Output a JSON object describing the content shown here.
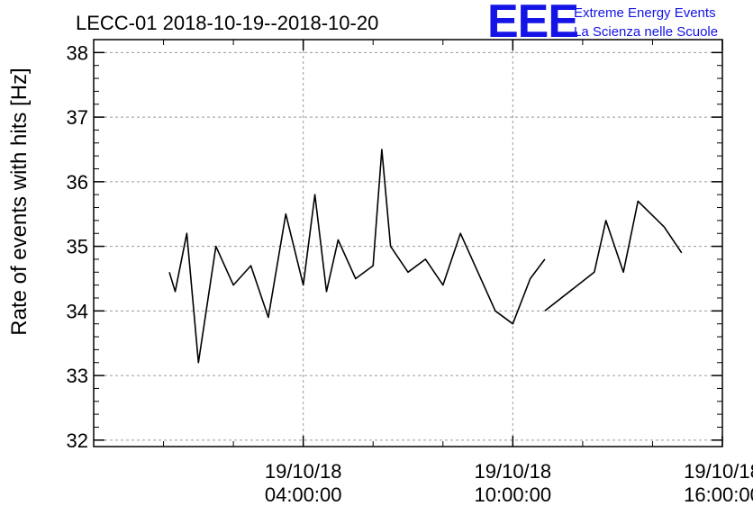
{
  "chart_data": {
    "type": "line",
    "title": "LECC-01 2018-10-19--2018-10-20",
    "ylabel": "Rate of events with hits [Hz]",
    "xlabel": "",
    "ylim": [
      31.9,
      38.2
    ],
    "yticks": [
      32,
      33,
      34,
      35,
      36,
      37,
      38
    ],
    "ytick_labels": [
      "32",
      "33",
      "34",
      "35",
      "36",
      "37",
      "38"
    ],
    "xlim": [
      "2018-10-18T22:00:00",
      "2018-10-19T16:00:00"
    ],
    "xticks": [
      "2018-10-19T04:00:00",
      "2018-10-19T10:00:00",
      "2018-10-19T16:00:00"
    ],
    "xtick_labels": [
      {
        "date": "19/10/18",
        "time": "04:00:00"
      },
      {
        "date": "19/10/18",
        "time": "10:00:00"
      },
      {
        "date": "19/10/18",
        "time": "16:00:00"
      }
    ],
    "grid": true,
    "series": [
      {
        "color": "#000000",
        "segments": [
          {
            "x": [
              "2018-10-19T00:10:00",
              "2018-10-19T00:20:00",
              "2018-10-19T00:40:00",
              "2018-10-19T01:00:00",
              "2018-10-19T01:30:00",
              "2018-10-19T02:00:00",
              "2018-10-19T02:30:00",
              "2018-10-19T03:00:00",
              "2018-10-19T03:30:00",
              "2018-10-19T04:00:00",
              "2018-10-19T04:20:00",
              "2018-10-19T04:40:00",
              "2018-10-19T05:00:00",
              "2018-10-19T05:30:00",
              "2018-10-19T06:00:00",
              "2018-10-19T06:15:00",
              "2018-10-19T06:30:00",
              "2018-10-19T07:00:00",
              "2018-10-19T07:30:00",
              "2018-10-19T08:00:00",
              "2018-10-19T08:30:00",
              "2018-10-19T09:00:00",
              "2018-10-19T09:30:00",
              "2018-10-19T10:00:00",
              "2018-10-19T10:30:00",
              "2018-10-19T10:55:00"
            ],
            "y": [
              34.6,
              34.3,
              35.2,
              33.2,
              35.0,
              34.4,
              34.7,
              33.9,
              35.5,
              34.4,
              35.8,
              34.3,
              35.1,
              34.5,
              34.7,
              36.5,
              35.0,
              34.6,
              34.8,
              34.4,
              35.2,
              34.6,
              34.0,
              33.8,
              34.5,
              34.8
            ]
          },
          {
            "x": [
              "2018-10-19T10:55:00",
              "2018-10-19T12:20:00",
              "2018-10-19T12:40:00",
              "2018-10-19T13:10:00",
              "2018-10-19T13:35:00",
              "2018-10-19T14:20:00",
              "2018-10-19T14:50:00"
            ],
            "y": [
              34.0,
              34.6,
              35.4,
              34.6,
              35.7,
              35.3,
              34.9
            ]
          }
        ]
      }
    ]
  },
  "logo": {
    "mark": "EEE",
    "line1": "Extreme Energy Events",
    "line2": "La Scienza nelle Scuole",
    "color": "#1414e6"
  }
}
